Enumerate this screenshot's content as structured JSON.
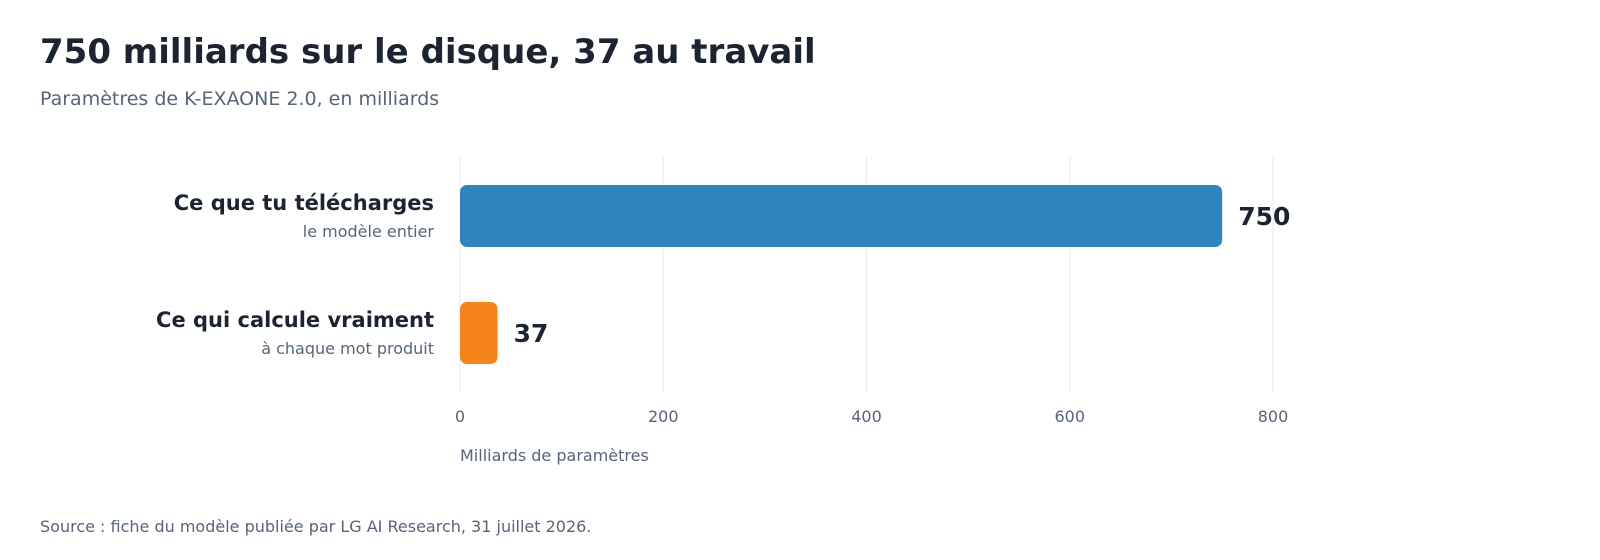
{
  "header": {
    "title": "750 milliards sur le disque, 37 au travail",
    "subtitle": "Paramètres de K-EXAONE 2.0, en milliards"
  },
  "footer": {
    "source": "Source : fiche du modèle publiée par LG AI Research, 31 juillet 2026."
  },
  "chart_data": {
    "type": "bar",
    "orientation": "horizontal",
    "categories": [
      "Ce que tu télécharges",
      "Ce qui calcule vraiment"
    ],
    "category_sublabels": [
      "le modèle entier",
      "à chaque mot produit"
    ],
    "values": [
      750,
      37
    ],
    "value_labels": [
      "750",
      "37"
    ],
    "colors": [
      "#3183bd",
      "#f5841b"
    ],
    "xlabel": "Milliards de paramètres",
    "xlim": [
      0,
      800
    ],
    "xticks": [
      0,
      200,
      400,
      600,
      800
    ],
    "grid": true
  }
}
